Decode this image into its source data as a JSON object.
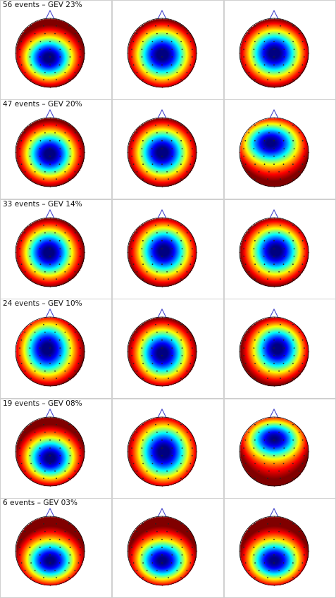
{
  "rows": [
    {
      "label": "56 events – GEV 23%",
      "maps": [
        {
          "cx": -0.05,
          "cy": 0.15,
          "sx": 0.48,
          "sy": 0.42,
          "warmTop": 0.55
        },
        {
          "cx": 0.0,
          "cy": 0.05,
          "sx": 0.52,
          "sy": 0.5,
          "warmTop": 0.3
        },
        {
          "cx": 0.0,
          "cy": 0.0,
          "sx": 0.52,
          "sy": 0.48,
          "warmTop": 0.2
        }
      ]
    },
    {
      "label": "47 events – GEV 20%",
      "maps": [
        {
          "cx": -0.02,
          "cy": 0.05,
          "sx": 0.48,
          "sy": 0.46,
          "warmTop": 0.2
        },
        {
          "cx": 0.0,
          "cy": 0.0,
          "sx": 0.5,
          "sy": 0.48,
          "warmTop": 0.1
        },
        {
          "cx": -0.12,
          "cy": -0.3,
          "sx": 0.58,
          "sy": 0.42,
          "warmTop": 0.0
        }
      ]
    },
    {
      "label": "33 events – GEV 14%",
      "maps": [
        {
          "cx": -0.05,
          "cy": 0.0,
          "sx": 0.48,
          "sy": 0.48,
          "warmTop": 0.2
        },
        {
          "cx": 0.05,
          "cy": -0.05,
          "sx": 0.5,
          "sy": 0.5,
          "warmTop": 0.1
        },
        {
          "cx": 0.05,
          "cy": -0.05,
          "sx": 0.5,
          "sy": 0.48,
          "warmTop": 0.1
        }
      ]
    },
    {
      "label": "24 events – GEV 10%",
      "maps": [
        {
          "cx": -0.1,
          "cy": -0.1,
          "sx": 0.5,
          "sy": 0.55,
          "warmTop": 0.1
        },
        {
          "cx": 0.0,
          "cy": 0.05,
          "sx": 0.48,
          "sy": 0.5,
          "warmTop": 0.2
        },
        {
          "cx": 0.1,
          "cy": -0.1,
          "sx": 0.48,
          "sy": 0.48,
          "warmTop": 0.1
        }
      ]
    },
    {
      "label": "19 events – GEV 08%",
      "maps": [
        {
          "cx": 0.0,
          "cy": 0.2,
          "sx": 0.48,
          "sy": 0.42,
          "warmTop": 0.6
        },
        {
          "cx": 0.05,
          "cy": 0.0,
          "sx": 0.52,
          "sy": 0.55,
          "warmTop": 0.0
        },
        {
          "cx": 0.0,
          "cy": -0.4,
          "sx": 0.55,
          "sy": 0.38,
          "warmTop": 0.0
        }
      ]
    },
    {
      "label": "6 events – GEV 03%",
      "maps": [
        {
          "cx": 0.0,
          "cy": 0.3,
          "sx": 0.5,
          "sy": 0.4,
          "warmTop": 0.7
        },
        {
          "cx": 0.0,
          "cy": 0.3,
          "sx": 0.5,
          "sy": 0.4,
          "warmTop": 0.7
        },
        {
          "cx": 0.0,
          "cy": 0.3,
          "sx": 0.5,
          "sy": 0.4,
          "warmTop": 0.7
        }
      ]
    }
  ],
  "colors": {
    "cell_border": "#d0d0d0",
    "head_outline": "#000000",
    "nose": "#3a3ac8",
    "electrode": "#222222"
  }
}
